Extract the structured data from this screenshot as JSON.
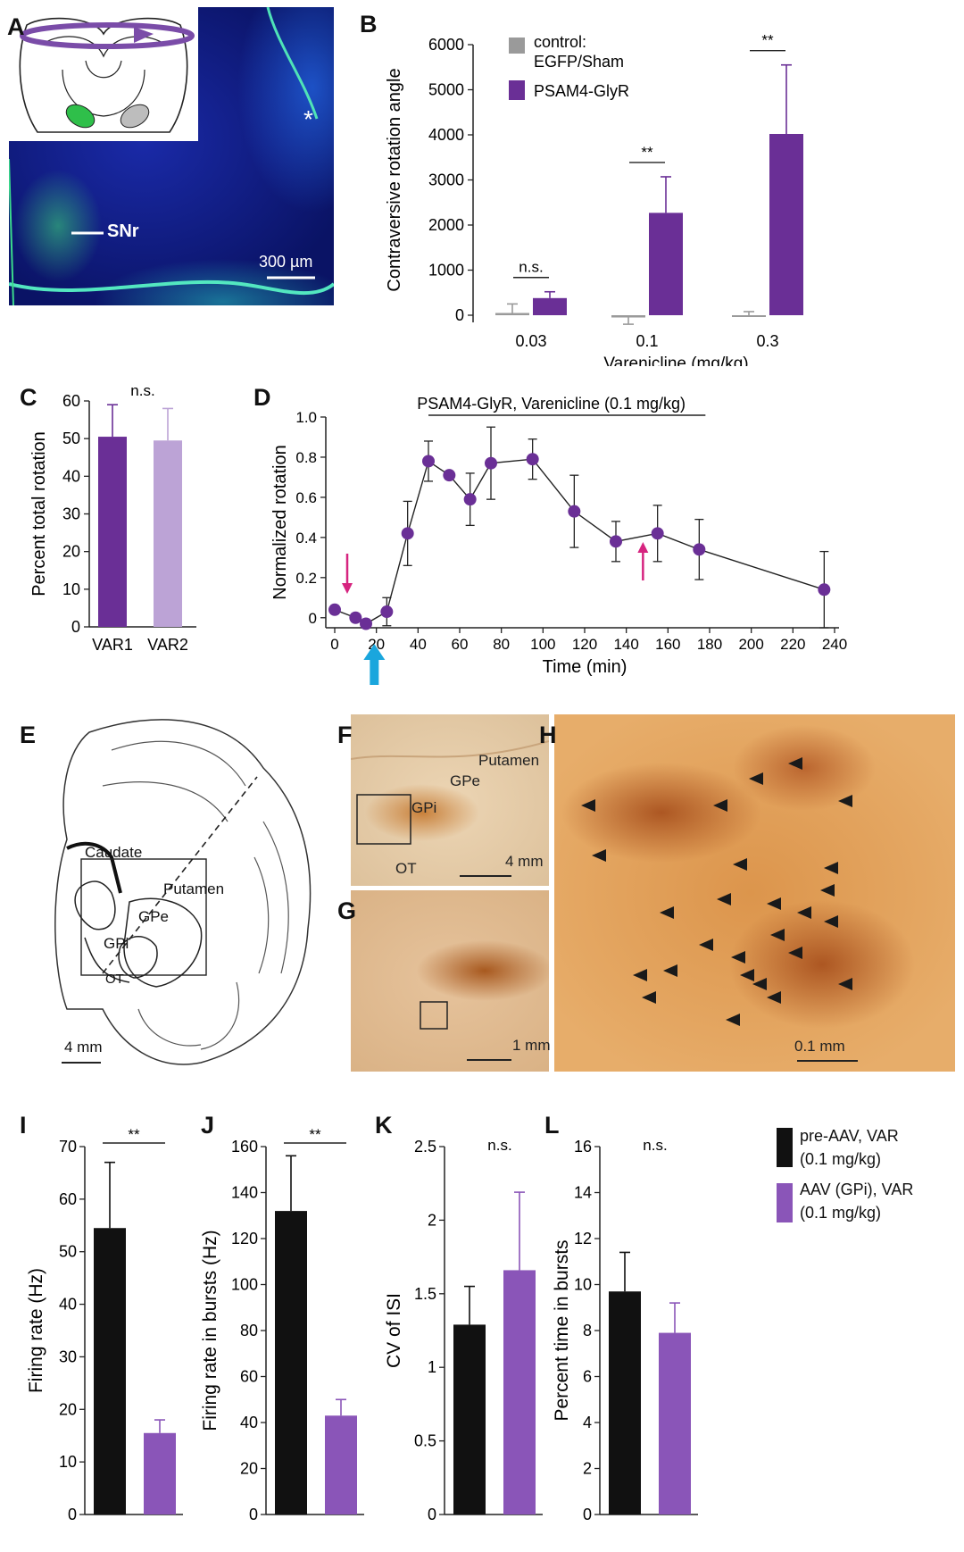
{
  "panels": {
    "A": {
      "letter": "A",
      "region_label": "SNr",
      "scale": "300 µm",
      "asterisk": "*"
    },
    "B": {
      "letter": "B"
    },
    "C": {
      "letter": "C"
    },
    "D": {
      "letter": "D"
    },
    "E": {
      "letter": "E",
      "labels": [
        "Caudate",
        "Putamen",
        "GPe",
        "GPi",
        "OT"
      ],
      "scale": "4 mm"
    },
    "F": {
      "letter": "F",
      "labels": [
        "Putamen",
        "GPe",
        "GPi",
        "OT"
      ],
      "scale": "4 mm"
    },
    "G": {
      "letter": "G",
      "scale": "1 mm"
    },
    "H": {
      "letter": "H",
      "scale": "0.1 mm"
    },
    "I": {
      "letter": "I"
    },
    "J": {
      "letter": "J"
    },
    "K": {
      "letter": "K"
    },
    "L": {
      "letter": "L"
    }
  },
  "colors": {
    "purple": "#6a2f96",
    "light_purple": "#bca3d6",
    "grey": "#9a9a9a",
    "black": "#111111",
    "magenta": "#d6247f",
    "cyan": "#1aa6dd",
    "bright_purple": "#8a55b8"
  },
  "chart_data": [
    {
      "id": "B",
      "type": "bar",
      "ylabel": "Contraversive rotation angle",
      "xlabel": "Varenicline (mg/kg)",
      "categories": [
        "0.03",
        "0.1",
        "0.3"
      ],
      "ylim": [
        0,
        6000
      ],
      "yticks": [
        "0",
        "1000",
        "2000",
        "3000",
        "4000",
        "5000",
        "6000"
      ],
      "legend": [
        "control:\nEGFP/Sham",
        "PSAM4-GlyR"
      ],
      "series": [
        {
          "name": "control: EGFP/Sham",
          "values": [
            50,
            -50,
            0
          ],
          "errors": [
            200,
            150,
            80
          ]
        },
        {
          "name": "PSAM4-GlyR",
          "values": [
            380,
            2270,
            4020
          ],
          "errors": [
            140,
            800,
            1530
          ]
        }
      ],
      "significance": [
        "n.s.",
        "**",
        "**"
      ]
    },
    {
      "id": "C",
      "type": "bar",
      "ylabel": "Percent total rotation",
      "categories": [
        "VAR1",
        "VAR2"
      ],
      "values": [
        50.5,
        49.5
      ],
      "errors": [
        8.5,
        8.5
      ],
      "ylim": [
        0,
        60
      ],
      "yticks": [
        "0",
        "10",
        "20",
        "30",
        "40",
        "50",
        "60"
      ],
      "significance": "n.s."
    },
    {
      "id": "D",
      "type": "line",
      "title": "PSAM4-GlyR, Varenicline (0.1 mg/kg)",
      "ylabel": "Normalized rotation",
      "xlabel": "Time (min)",
      "xlim": [
        0,
        240
      ],
      "ylim": [
        -0.05,
        1.0
      ],
      "xticks": [
        "0",
        "20",
        "40",
        "60",
        "80",
        "100",
        "120",
        "140",
        "160",
        "180",
        "200",
        "220",
        "240"
      ],
      "yticks": [
        "0",
        "0.2",
        "0.4",
        "0.6",
        "0.8",
        "1.0"
      ],
      "x": [
        0,
        10,
        15,
        25,
        35,
        45,
        55,
        65,
        75,
        95,
        115,
        135,
        155,
        175,
        235
      ],
      "y": [
        0.04,
        0.0,
        -0.03,
        0.03,
        0.42,
        0.78,
        0.71,
        0.59,
        0.77,
        0.79,
        0.53,
        0.38,
        0.42,
        0.34,
        0.14
      ],
      "errors": [
        0.02,
        0.02,
        0.02,
        0.07,
        0.16,
        0.1,
        0.02,
        0.13,
        0.18,
        0.1,
        0.18,
        0.1,
        0.14,
        0.15,
        0.19
      ],
      "arrows_magenta_x": [
        6,
        148
      ],
      "arrow_cyan_x": 19
    },
    {
      "id": "I",
      "type": "bar",
      "ylabel": "Firing rate (Hz)",
      "values": [
        54.5,
        15.5
      ],
      "errors": [
        12.5,
        2.5
      ],
      "ylim": [
        0,
        70
      ],
      "yticks": [
        "0",
        "10",
        "20",
        "30",
        "40",
        "50",
        "60",
        "70"
      ],
      "significance": "**"
    },
    {
      "id": "J",
      "type": "bar",
      "ylabel": "Firing rate in bursts (Hz)",
      "values": [
        132,
        43
      ],
      "errors": [
        24,
        7
      ],
      "ylim": [
        0,
        160
      ],
      "yticks": [
        "0",
        "20",
        "40",
        "60",
        "80",
        "100",
        "120",
        "140",
        "160"
      ],
      "significance": "**"
    },
    {
      "id": "K",
      "type": "bar",
      "ylabel": "CV of ISI",
      "values": [
        1.29,
        1.66
      ],
      "errors": [
        0.26,
        0.53
      ],
      "ylim": [
        0,
        2.5
      ],
      "yticks": [
        "0",
        "0.5",
        "1",
        "1.5",
        "2",
        "2.5"
      ],
      "significance": "n.s."
    },
    {
      "id": "L",
      "type": "bar",
      "ylabel": "Percent time in bursts",
      "values": [
        9.7,
        7.9
      ],
      "errors": [
        1.7,
        1.3
      ],
      "ylim": [
        0,
        16
      ],
      "yticks": [
        "0",
        "2",
        "4",
        "6",
        "8",
        "10",
        "12",
        "14",
        "16"
      ],
      "significance": "n.s.",
      "legend": [
        "pre-AAV, VAR\n(0.1 mg/kg)",
        "AAV (GPi), VAR\n(0.1 mg/kg)"
      ]
    }
  ]
}
